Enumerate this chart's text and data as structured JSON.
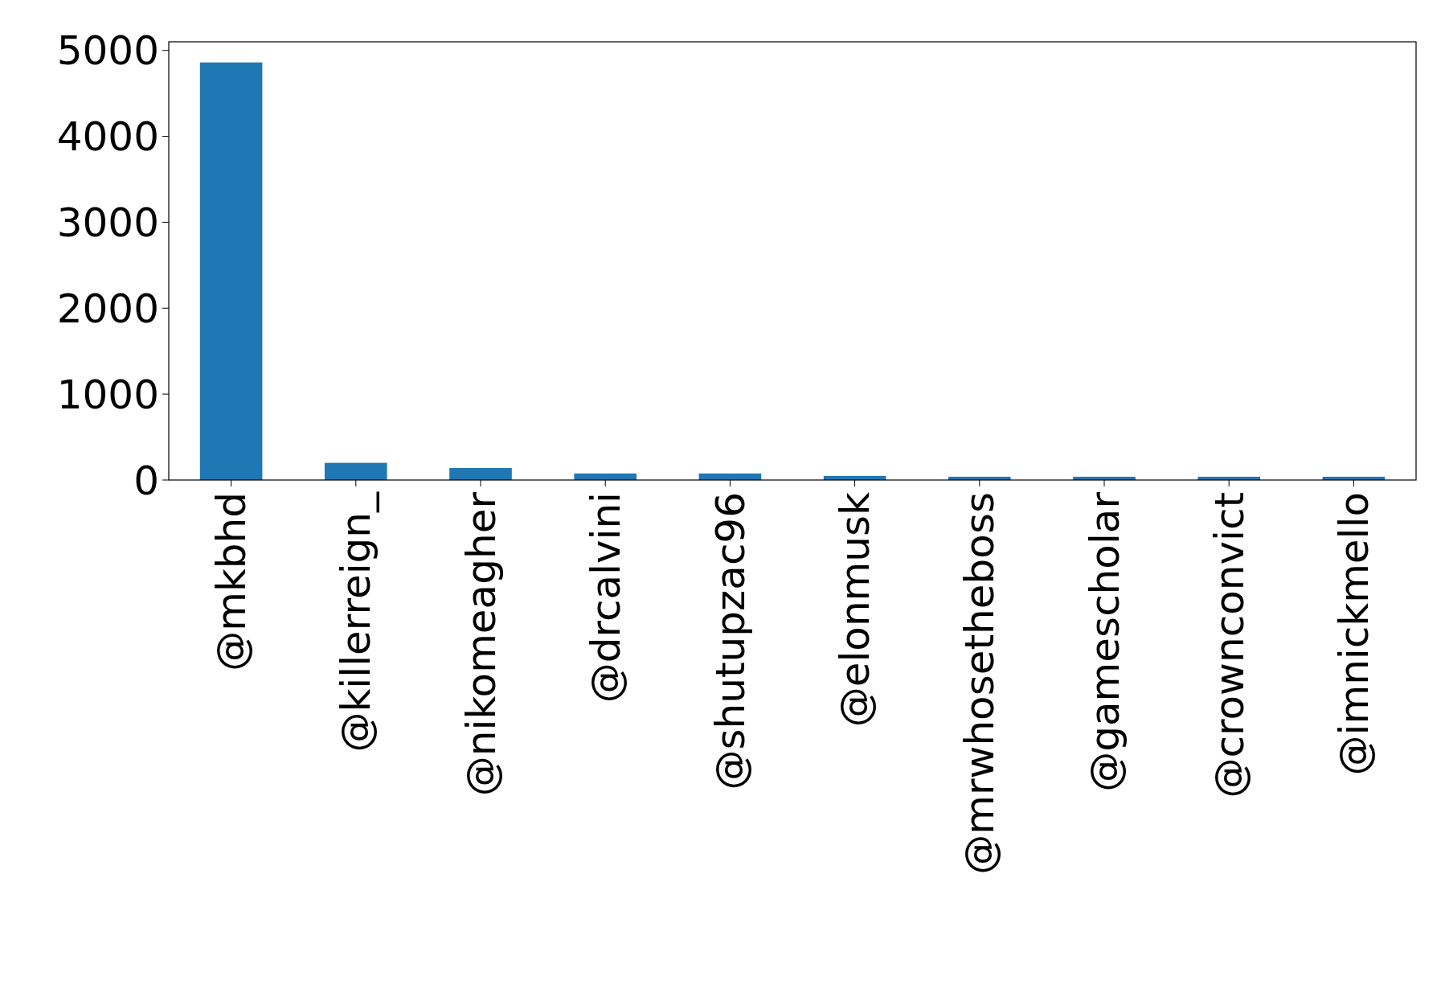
{
  "chart_data": {
    "type": "bar",
    "categories": [
      "@mkbhd",
      "@killerreign_",
      "@nikomeagher",
      "@drcalvini",
      "@shutupzac96",
      "@elonmusk",
      "@mrwhosetheboss",
      "@gamescholar",
      "@crownconvict",
      "@imnickmello"
    ],
    "values": [
      4860,
      200,
      140,
      76,
      76,
      48,
      38,
      38,
      38,
      38
    ],
    "color": "#1f77b4",
    "ylim": [
      0,
      5100
    ],
    "yticks": [
      0,
      1000,
      2000,
      3000,
      4000,
      5000
    ],
    "grid": false
  }
}
